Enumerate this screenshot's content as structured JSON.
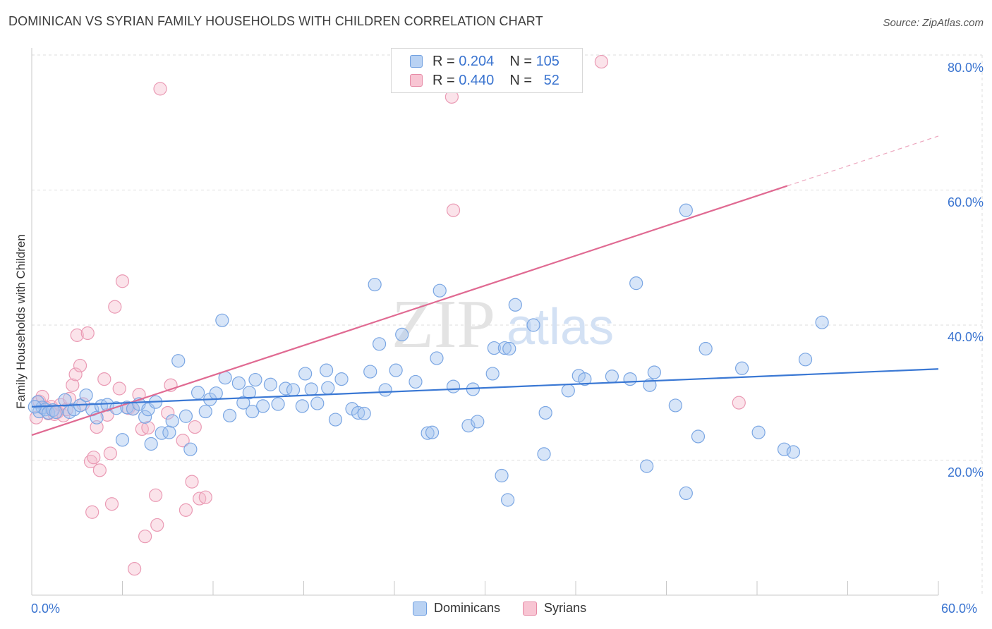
{
  "title": "DOMINICAN VS SYRIAN FAMILY HOUSEHOLDS WITH CHILDREN CORRELATION CHART",
  "source": "Source: ZipAtlas.com",
  "watermark": {
    "zip": "ZIP",
    "atlas": "atlas"
  },
  "legend_top": {
    "rows": [
      {
        "r_label": "R =",
        "r_value": "0.204",
        "n_label": "N =",
        "n_value": "105",
        "color": "#b9d2f3",
        "border": "#6f9fe0"
      },
      {
        "r_label": "R =",
        "r_value": "0.440",
        "n_label": "N =",
        "n_value": "52",
        "color": "#f8c5d3",
        "border": "#e68aa6"
      }
    ]
  },
  "legend_bottom": {
    "items": [
      {
        "label": "Dominicans",
        "color": "#b9d2f3",
        "border": "#6f9fe0"
      },
      {
        "label": "Syrians",
        "color": "#f8c5d3",
        "border": "#e68aa6"
      }
    ]
  },
  "colors": {
    "blue": "#3a78d4",
    "blue_fill": "rgba(167,198,240,0.45)",
    "blue_stroke": "#7aa6e3",
    "pink": "#e06a92",
    "pink_fill": "rgba(245,184,203,0.40)",
    "pink_stroke": "#ea9ab4",
    "grid": "#dcdcdc",
    "axis_text": "#3a74d0"
  },
  "chart_data": {
    "type": "scatter",
    "title": "DOMINICAN VS SYRIAN FAMILY HOUSEHOLDS WITH CHILDREN CORRELATION CHART",
    "xlabel": "",
    "ylabel": "Family Households with Children",
    "xlim": [
      0,
      60
    ],
    "ylim": [
      0,
      80
    ],
    "x_tick_labels": {
      "min": "0.0%",
      "max": "60.0%"
    },
    "y_ticks": [
      {
        "value": 20,
        "label": "20.0%"
      },
      {
        "value": 40,
        "label": "40.0%"
      },
      {
        "value": 60,
        "label": "60.0%"
      },
      {
        "value": 80,
        "label": "80.0%"
      }
    ],
    "series": [
      {
        "name": "Dominicans",
        "r": 0.204,
        "n": 105,
        "trend": {
          "x0": 0,
          "y0": 27.9,
          "x1": 60,
          "y1": 33.5,
          "dashed_from": null
        },
        "points": [
          [
            0.4,
            28.6
          ],
          [
            0.5,
            27.2
          ],
          [
            0.7,
            27.8
          ],
          [
            0.9,
            27.5
          ],
          [
            1.1,
            27.0
          ],
          [
            1.4,
            27.4
          ],
          [
            1.6,
            27.1
          ],
          [
            2.2,
            28.9
          ],
          [
            2.5,
            27.1
          ],
          [
            2.8,
            27.5
          ],
          [
            3.2,
            28.1
          ],
          [
            3.6,
            29.6
          ],
          [
            4.0,
            27.5
          ],
          [
            4.3,
            26.3
          ],
          [
            4.6,
            28.0
          ],
          [
            5.0,
            28.2
          ],
          [
            5.6,
            27.7
          ],
          [
            6.0,
            23.0
          ],
          [
            6.3,
            27.8
          ],
          [
            6.7,
            27.6
          ],
          [
            7.1,
            28.3
          ],
          [
            7.5,
            26.4
          ],
          [
            7.7,
            27.5
          ],
          [
            7.9,
            22.4
          ],
          [
            8.2,
            28.6
          ],
          [
            8.6,
            24.0
          ],
          [
            9.1,
            24.1
          ],
          [
            9.3,
            25.8
          ],
          [
            9.7,
            34.7
          ],
          [
            10.2,
            26.5
          ],
          [
            10.5,
            21.6
          ],
          [
            11.0,
            30.0
          ],
          [
            11.5,
            27.2
          ],
          [
            11.8,
            29.0
          ],
          [
            12.2,
            29.9
          ],
          [
            12.6,
            40.7
          ],
          [
            12.8,
            32.2
          ],
          [
            13.1,
            26.6
          ],
          [
            13.7,
            31.4
          ],
          [
            14.0,
            28.5
          ],
          [
            14.4,
            30.0
          ],
          [
            14.6,
            27.2
          ],
          [
            14.8,
            31.9
          ],
          [
            15.3,
            28.0
          ],
          [
            15.8,
            31.2
          ],
          [
            16.3,
            28.3
          ],
          [
            16.8,
            30.6
          ],
          [
            17.3,
            30.4
          ],
          [
            17.9,
            28.0
          ],
          [
            18.1,
            32.8
          ],
          [
            18.5,
            30.5
          ],
          [
            18.9,
            28.4
          ],
          [
            19.5,
            33.3
          ],
          [
            19.6,
            30.7
          ],
          [
            20.1,
            26.0
          ],
          [
            20.5,
            32.0
          ],
          [
            21.2,
            27.6
          ],
          [
            21.6,
            27.0
          ],
          [
            22.0,
            26.9
          ],
          [
            22.4,
            33.1
          ],
          [
            22.7,
            46.0
          ],
          [
            23.0,
            37.2
          ],
          [
            23.4,
            30.4
          ],
          [
            24.1,
            33.3
          ],
          [
            24.5,
            38.6
          ],
          [
            25.4,
            31.6
          ],
          [
            26.2,
            24.0
          ],
          [
            26.5,
            24.1
          ],
          [
            26.8,
            35.1
          ],
          [
            27.0,
            45.1
          ],
          [
            27.9,
            30.9
          ],
          [
            28.9,
            25.1
          ],
          [
            29.2,
            30.5
          ],
          [
            29.5,
            25.7
          ],
          [
            30.5,
            32.8
          ],
          [
            30.6,
            36.6
          ],
          [
            31.1,
            17.7
          ],
          [
            31.3,
            36.6
          ],
          [
            31.5,
            14.1
          ],
          [
            31.6,
            36.5
          ],
          [
            32.0,
            43.0
          ],
          [
            33.2,
            40.0
          ],
          [
            33.9,
            20.9
          ],
          [
            34.0,
            27.0
          ],
          [
            35.5,
            30.3
          ],
          [
            36.2,
            32.5
          ],
          [
            36.6,
            32.0
          ],
          [
            38.4,
            32.4
          ],
          [
            39.6,
            32.0
          ],
          [
            40.0,
            46.2
          ],
          [
            40.7,
            19.1
          ],
          [
            40.9,
            31.1
          ],
          [
            41.2,
            33.0
          ],
          [
            42.6,
            28.1
          ],
          [
            43.3,
            15.1
          ],
          [
            43.3,
            57.0
          ],
          [
            44.1,
            23.5
          ],
          [
            44.6,
            36.5
          ],
          [
            47.0,
            33.6
          ],
          [
            48.1,
            24.1
          ],
          [
            49.8,
            21.6
          ],
          [
            50.4,
            21.2
          ],
          [
            51.2,
            34.9
          ],
          [
            52.3,
            40.4
          ],
          [
            0.2,
            27.9
          ]
        ]
      },
      {
        "name": "Syrians",
        "r": 0.44,
        "n": 52,
        "trend": {
          "x0": 0,
          "y0": 23.7,
          "x1": 60,
          "y1": 68.0,
          "dashed_from": 50.0
        },
        "points": [
          [
            0.3,
            26.3
          ],
          [
            0.5,
            28.7
          ],
          [
            0.7,
            29.4
          ],
          [
            0.9,
            27.8
          ],
          [
            1.1,
            26.9
          ],
          [
            1.3,
            27.9
          ],
          [
            1.5,
            26.8
          ],
          [
            1.7,
            27.1
          ],
          [
            1.9,
            28.2
          ],
          [
            2.1,
            26.6
          ],
          [
            2.3,
            27.5
          ],
          [
            2.5,
            29.1
          ],
          [
            2.7,
            31.1
          ],
          [
            2.9,
            32.7
          ],
          [
            3.0,
            38.5
          ],
          [
            3.2,
            34.0
          ],
          [
            3.4,
            28.3
          ],
          [
            3.7,
            38.8
          ],
          [
            3.9,
            19.8
          ],
          [
            4.0,
            12.3
          ],
          [
            4.1,
            20.4
          ],
          [
            4.3,
            24.9
          ],
          [
            4.5,
            18.5
          ],
          [
            4.8,
            32.0
          ],
          [
            5.0,
            26.7
          ],
          [
            5.2,
            21.0
          ],
          [
            5.3,
            13.5
          ],
          [
            5.5,
            42.7
          ],
          [
            5.8,
            30.6
          ],
          [
            6.0,
            46.5
          ],
          [
            6.4,
            27.7
          ],
          [
            6.7,
            27.6
          ],
          [
            6.8,
            3.9
          ],
          [
            7.1,
            29.7
          ],
          [
            7.3,
            24.6
          ],
          [
            7.5,
            8.7
          ],
          [
            7.7,
            24.8
          ],
          [
            8.2,
            14.8
          ],
          [
            8.3,
            10.4
          ],
          [
            8.5,
            75.0
          ],
          [
            9.0,
            27.0
          ],
          [
            9.2,
            31.1
          ],
          [
            10.0,
            22.9
          ],
          [
            10.2,
            12.6
          ],
          [
            10.6,
            16.8
          ],
          [
            10.8,
            24.9
          ],
          [
            11.1,
            14.3
          ],
          [
            11.5,
            14.5
          ],
          [
            27.8,
            73.8
          ],
          [
            27.9,
            57.0
          ],
          [
            37.7,
            79.0
          ],
          [
            46.8,
            28.5
          ]
        ]
      }
    ]
  }
}
